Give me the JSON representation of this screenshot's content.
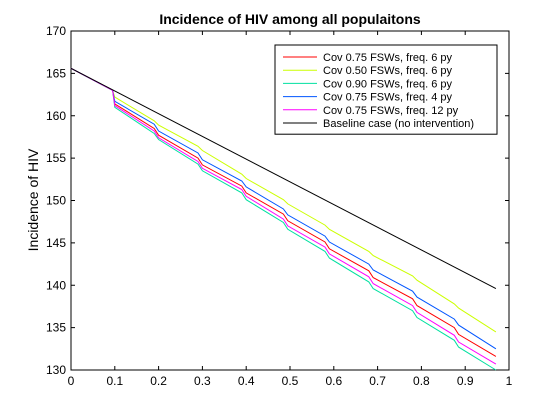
{
  "chart_data": {
    "type": "line",
    "title": "Incidence of HIV among all populaitons",
    "xlabel": "",
    "ylabel": "Incidence of HIV",
    "xlim": [
      0,
      1
    ],
    "ylim": [
      130,
      170
    ],
    "xticks": [
      "0",
      "0.1",
      "0.2",
      "0.3",
      "0.4",
      "0.5",
      "0.6",
      "0.7",
      "0.8",
      "0.9",
      "1"
    ],
    "yticks": [
      "130",
      "135",
      "140",
      "145",
      "150",
      "155",
      "160",
      "165",
      "170"
    ],
    "grid": false,
    "legend_position": "top-right",
    "series": [
      {
        "name": "Cov 0.75 FSWs, freq. 6 py",
        "color": "#ff0000",
        "x": [
          0.0,
          0.095,
          0.1,
          0.19,
          0.2,
          0.29,
          0.3,
          0.39,
          0.4,
          0.485,
          0.495,
          0.58,
          0.59,
          0.68,
          0.69,
          0.78,
          0.79,
          0.875,
          0.885,
          0.97
        ],
        "y": [
          165.6,
          163.0,
          161.4,
          158.5,
          157.7,
          155.0,
          154.2,
          151.7,
          150.9,
          148.4,
          147.6,
          145.1,
          144.3,
          141.7,
          140.9,
          138.4,
          137.6,
          135.0,
          134.2,
          131.6
        ]
      },
      {
        "name": "Cov 0.50 FSWs, freq. 6 py",
        "color": "#ccff00",
        "x": [
          0.0,
          0.095,
          0.1,
          0.19,
          0.2,
          0.29,
          0.3,
          0.39,
          0.4,
          0.485,
          0.495,
          0.58,
          0.59,
          0.68,
          0.69,
          0.78,
          0.79,
          0.875,
          0.885,
          0.97
        ],
        "y": [
          165.6,
          163.0,
          162.2,
          159.4,
          158.9,
          156.4,
          155.9,
          153.1,
          152.6,
          150.1,
          149.6,
          147.1,
          146.6,
          144.0,
          143.5,
          141.1,
          140.6,
          137.8,
          137.3,
          134.5
        ]
      },
      {
        "name": "Cov 0.90 FSWs, freq. 6 py",
        "color": "#00e0a0",
        "x": [
          0.0,
          0.095,
          0.1,
          0.19,
          0.2,
          0.29,
          0.3,
          0.39,
          0.4,
          0.485,
          0.495,
          0.58,
          0.59,
          0.68,
          0.69,
          0.78,
          0.79,
          0.875,
          0.885,
          0.97
        ],
        "y": [
          165.6,
          163.0,
          161.0,
          157.9,
          157.2,
          154.3,
          153.5,
          150.9,
          150.1,
          147.4,
          146.6,
          144.0,
          143.2,
          140.4,
          139.6,
          137.0,
          136.2,
          133.5,
          132.7,
          130.0
        ]
      },
      {
        "name": "Cov 0.75 FSWs, freq. 4 py",
        "color": "#0055ff",
        "x": [
          0.0,
          0.095,
          0.1,
          0.19,
          0.2,
          0.29,
          0.3,
          0.39,
          0.4,
          0.485,
          0.495,
          0.58,
          0.59,
          0.68,
          0.69,
          0.78,
          0.79,
          0.875,
          0.885,
          0.97
        ],
        "y": [
          165.6,
          163.0,
          161.7,
          159.0,
          158.2,
          155.6,
          154.8,
          152.3,
          151.6,
          149.0,
          148.3,
          145.8,
          145.1,
          142.5,
          141.8,
          139.3,
          138.6,
          136.0,
          135.3,
          132.5
        ]
      },
      {
        "name": "Cov 0.75 FSWs, freq. 12 py",
        "color": "#ff00ff",
        "x": [
          0.0,
          0.095,
          0.1,
          0.19,
          0.2,
          0.29,
          0.3,
          0.39,
          0.4,
          0.485,
          0.495,
          0.58,
          0.59,
          0.68,
          0.69,
          0.78,
          0.79,
          0.875,
          0.885,
          0.97
        ],
        "y": [
          165.6,
          163.0,
          161.2,
          158.2,
          157.4,
          154.6,
          153.8,
          151.3,
          150.5,
          147.8,
          147.0,
          144.5,
          143.7,
          141.0,
          140.2,
          137.6,
          136.8,
          134.1,
          133.3,
          130.7
        ]
      },
      {
        "name": "Baseline case (no intervention)",
        "color": "#000000",
        "x": [
          0.0,
          0.97
        ],
        "y": [
          165.6,
          139.6
        ]
      }
    ]
  }
}
